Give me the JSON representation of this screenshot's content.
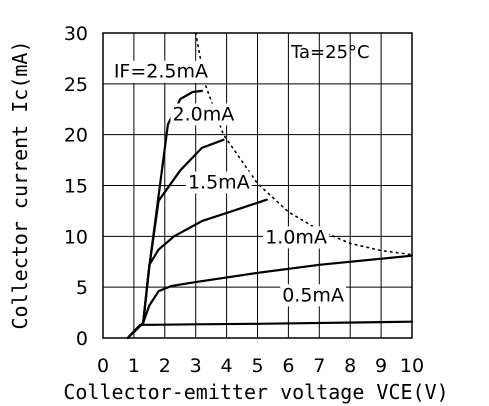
{
  "chart_data": {
    "type": "line",
    "title": "",
    "xlabel": "Collector-emitter voltage VCE(V)",
    "ylabel": "Collector current Ic(mA)",
    "xlim": [
      0,
      10
    ],
    "ylim": [
      0,
      30
    ],
    "xticks": [
      "0",
      "1",
      "2",
      "3",
      "4",
      "5",
      "6",
      "7",
      "8",
      "9",
      "10"
    ],
    "yticks": [
      "0",
      "5",
      "10",
      "15",
      "20",
      "25",
      "30"
    ],
    "grid": true,
    "annotation": "Ta=25°C",
    "series": [
      {
        "name": "IF=2.5mA",
        "x": [
          0.8,
          1.3,
          1.5,
          1.8,
          2.1,
          2.5,
          2.9,
          3.2
        ],
        "y": [
          0,
          1.5,
          7,
          14,
          21,
          23.5,
          24.2,
          24.3
        ]
      },
      {
        "name": "2.0mA",
        "x": [
          0.8,
          1.3,
          1.5,
          1.8,
          2.5,
          3.2,
          3.9
        ],
        "y": [
          0,
          1.5,
          7,
          13.5,
          16.5,
          18.7,
          19.5
        ]
      },
      {
        "name": "1.5mA",
        "x": [
          0.8,
          1.3,
          1.5,
          1.8,
          2.3,
          3.2,
          4.2,
          5.3
        ],
        "y": [
          0,
          1.5,
          7.2,
          8.7,
          10,
          11.5,
          12.5,
          13.6
        ]
      },
      {
        "name": "1.0mA",
        "x": [
          0.8,
          1.3,
          1.5,
          1.8,
          2.2,
          3,
          5,
          7,
          10
        ],
        "y": [
          0,
          1.5,
          3.2,
          4.6,
          5.1,
          5.5,
          6.4,
          7.2,
          8.1
        ]
      },
      {
        "name": "0.5mA",
        "x": [
          0.8,
          1.2,
          1.6,
          3,
          5,
          10
        ],
        "y": [
          0,
          1.3,
          1.3,
          1.35,
          1.4,
          1.6
        ]
      }
    ],
    "power_limit": {
      "x": [
        3,
        3.3,
        3.9,
        5,
        6,
        7,
        8,
        9,
        10
      ],
      "y": [
        30,
        25,
        20,
        15.2,
        12.4,
        10.6,
        9.3,
        8.6,
        8.2
      ]
    },
    "curve_labels": [
      {
        "text": "IF=2.5mA",
        "x": 0.35,
        "y": 25.6
      },
      {
        "text": "2.0mA",
        "x": 2.25,
        "y": 21.4
      },
      {
        "text": "1.5mA",
        "x": 2.75,
        "y": 14.7
      },
      {
        "text": "1.0mA",
        "x": 5.25,
        "y": 9.3
      },
      {
        "text": "0.5mA",
        "x": 5.8,
        "y": 3.6
      }
    ]
  }
}
